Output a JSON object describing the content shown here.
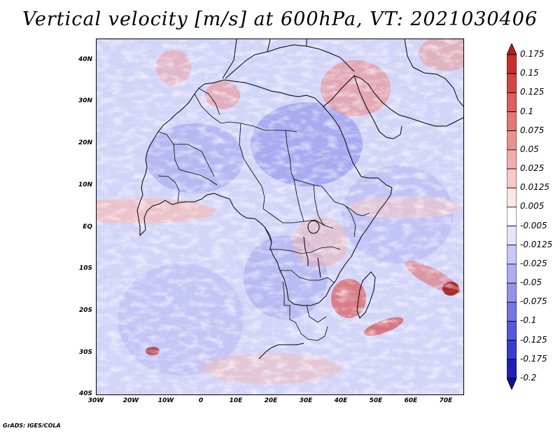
{
  "title": "Vertical velocity [m/s] at 600hPa, VT: 2021030406",
  "credit": "GrADS: IGES/COLA",
  "map": {
    "lon_range": [
      -30,
      75
    ],
    "lat_range": [
      -40,
      45
    ],
    "lat_labels": [
      "40N",
      "30N",
      "20N",
      "10N",
      "EQ",
      "10S",
      "20S",
      "30S",
      "40S"
    ],
    "lon_labels": [
      "30W",
      "20W",
      "10W",
      "0",
      "10E",
      "20E",
      "30E",
      "40E",
      "50E",
      "60E",
      "70E"
    ],
    "field": "vertical velocity",
    "level": "600hPa",
    "valid_time": "2021030406"
  },
  "colorbar": {
    "labels": [
      "0.175",
      "0.15",
      "0.125",
      "0.1",
      "0.075",
      "0.05",
      "0.025",
      "0.0125",
      "0.005",
      "-0.005",
      "-0.0125",
      "-0.025",
      "-0.05",
      "-0.075",
      "-0.1",
      "-0.125",
      "-0.175",
      "-0.2"
    ],
    "colors": [
      "#b81c1c",
      "#c83030",
      "#d34646",
      "#dc5e5e",
      "#e37777",
      "#ea9292",
      "#f1adad",
      "#f7caca",
      "#fce6e6",
      "#ffffff",
      "#e4e4fb",
      "#c9c9f6",
      "#aeaef1",
      "#9393ea",
      "#7676e2",
      "#5858d8",
      "#3a3ace",
      "#2020b8",
      "#10109a"
    ]
  }
}
